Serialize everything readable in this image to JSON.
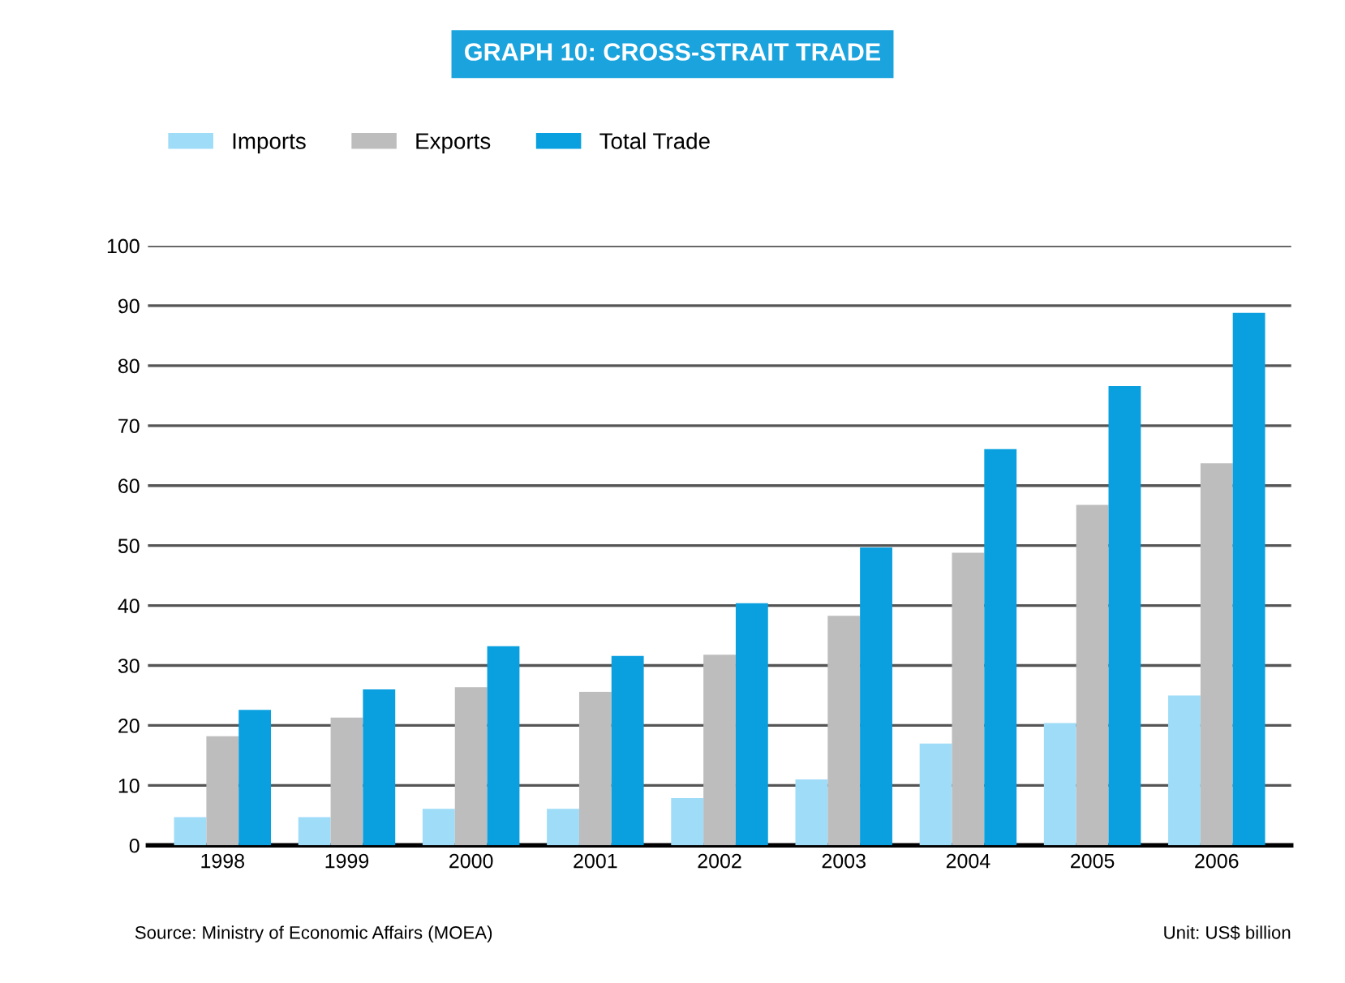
{
  "chart_data": {
    "type": "bar",
    "title": "GRAPH 10: CROSS-STRAIT TRADE",
    "categories": [
      "1998",
      "1999",
      "2000",
      "2001",
      "2002",
      "2003",
      "2004",
      "2005",
      "2006"
    ],
    "series": [
      {
        "name": "Imports",
        "color": "#9fdcf8",
        "values": [
          4.7,
          4.7,
          6.1,
          6.1,
          7.9,
          11.0,
          17.0,
          20.4,
          25.0
        ]
      },
      {
        "name": "Exports",
        "color": "#bdbdbd",
        "values": [
          18.2,
          21.3,
          26.4,
          25.6,
          31.8,
          38.3,
          48.8,
          56.8,
          63.7
        ]
      },
      {
        "name": "Total Trade",
        "color": "#0aa0e0",
        "values": [
          22.6,
          26.0,
          33.2,
          31.6,
          40.4,
          49.7,
          66.1,
          76.6,
          88.8
        ]
      }
    ],
    "ylim": [
      0,
      100
    ],
    "yticks": [
      0,
      10,
      20,
      30,
      40,
      50,
      60,
      70,
      80,
      90,
      100
    ],
    "grid": "y",
    "legend": "top left",
    "annotations": [
      "Source: Ministry of Economic Affairs (MOEA)",
      "Unit: US$ billion"
    ]
  }
}
